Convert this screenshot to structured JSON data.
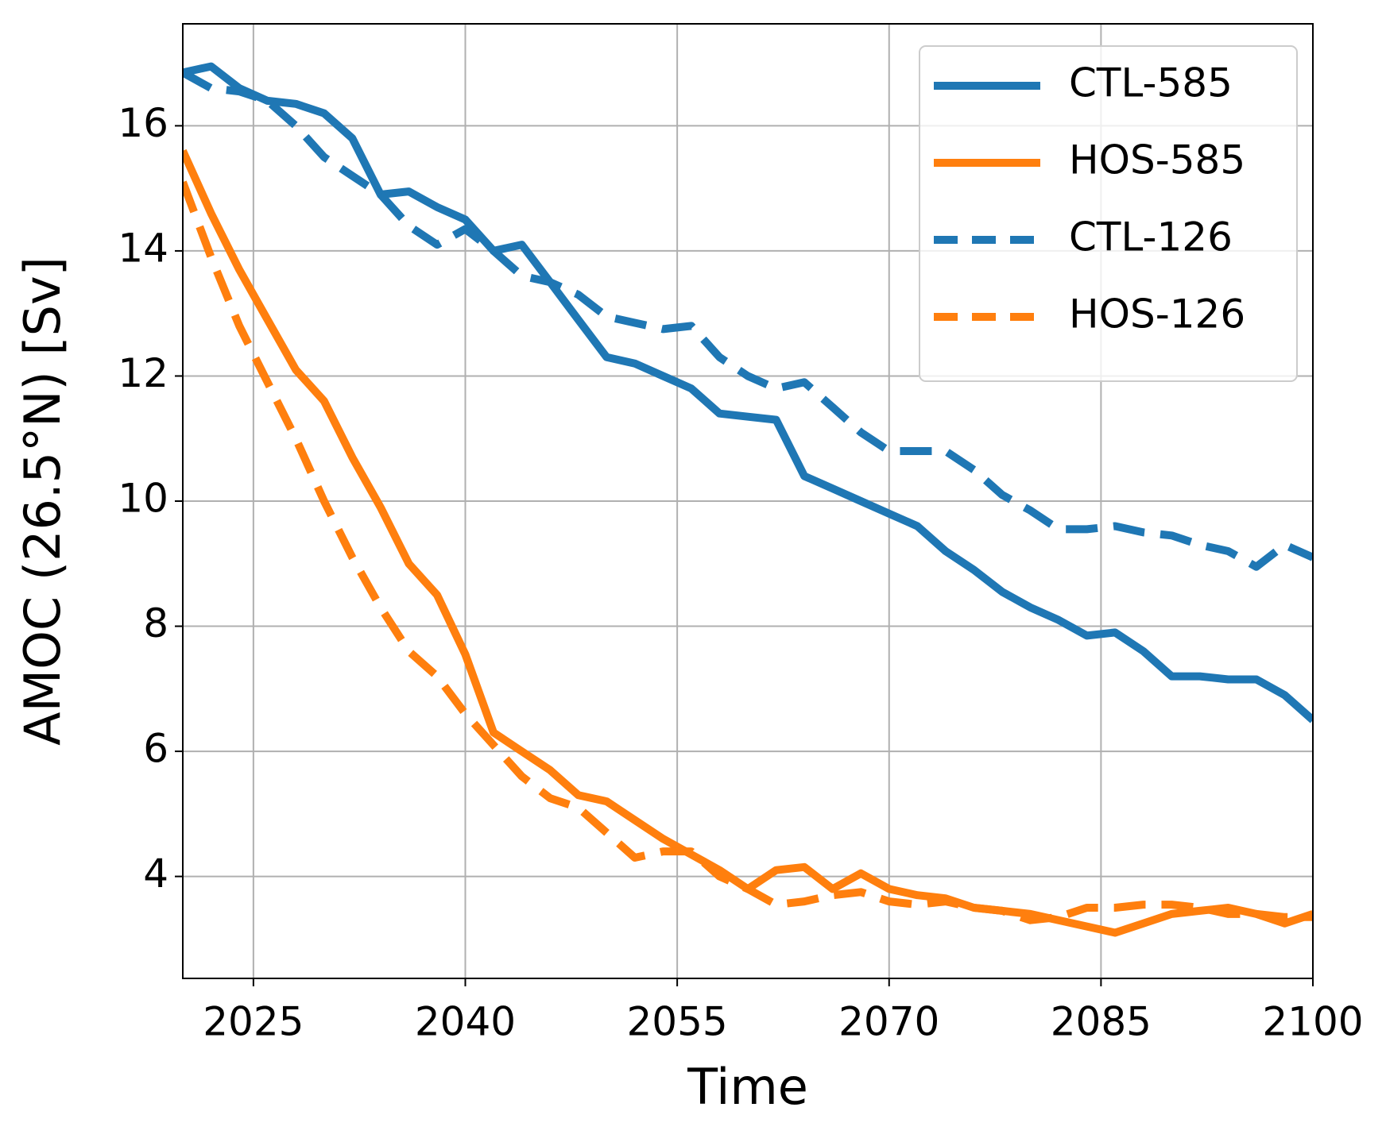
{
  "chart_data": {
    "type": "line",
    "xlabel": "Time",
    "ylabel": "AMOC (26.5°N) [Sv]",
    "x": [
      2020,
      2022,
      2024,
      2026,
      2028,
      2030,
      2032,
      2034,
      2036,
      2038,
      2040,
      2042,
      2044,
      2046,
      2048,
      2050,
      2052,
      2054,
      2056,
      2058,
      2060,
      2062,
      2064,
      2066,
      2068,
      2070,
      2072,
      2074,
      2076,
      2078,
      2080,
      2082,
      2084,
      2086,
      2088,
      2090,
      2092,
      2094,
      2096,
      2098,
      2100
    ],
    "series": [
      {
        "name": "CTL-585",
        "color": "#1f77b4",
        "linestyle": "solid",
        "values": [
          16.85,
          16.95,
          16.6,
          16.4,
          16.35,
          16.2,
          15.8,
          14.9,
          14.95,
          14.7,
          14.5,
          14.0,
          14.1,
          13.5,
          12.9,
          12.3,
          12.2,
          12.0,
          11.8,
          11.4,
          11.35,
          11.3,
          10.4,
          10.2,
          10.0,
          9.8,
          9.6,
          9.2,
          8.9,
          8.55,
          8.3,
          8.1,
          7.85,
          7.9,
          7.6,
          7.2,
          7.2,
          7.15,
          7.15,
          6.9,
          6.5
        ]
      },
      {
        "name": "HOS-585",
        "color": "#ff7f0e",
        "linestyle": "solid",
        "values": [
          15.6,
          14.6,
          13.7,
          12.9,
          12.1,
          11.6,
          10.7,
          9.9,
          9.0,
          8.5,
          7.55,
          6.3,
          6.0,
          5.7,
          5.3,
          5.2,
          4.9,
          4.6,
          4.35,
          4.1,
          3.8,
          4.1,
          4.15,
          3.8,
          4.05,
          3.8,
          3.7,
          3.65,
          3.5,
          3.45,
          3.4,
          3.3,
          3.2,
          3.1,
          3.25,
          3.4,
          3.45,
          3.5,
          3.4,
          3.25,
          3.4
        ]
      },
      {
        "name": "CTL-126",
        "color": "#1f77b4",
        "linestyle": "dashed",
        "values": [
          16.85,
          16.6,
          16.55,
          16.4,
          16.0,
          15.5,
          15.2,
          14.9,
          14.4,
          14.1,
          14.35,
          14.0,
          13.6,
          13.5,
          13.3,
          12.95,
          12.85,
          12.75,
          12.8,
          12.3,
          12.0,
          11.8,
          11.9,
          11.5,
          11.1,
          10.8,
          10.8,
          10.8,
          10.5,
          10.1,
          9.85,
          9.55,
          9.55,
          9.6,
          9.5,
          9.45,
          9.3,
          9.2,
          8.95,
          9.3,
          9.1
        ]
      },
      {
        "name": "HOS-126",
        "color": "#ff7f0e",
        "linestyle": "dashed",
        "values": [
          15.1,
          13.9,
          12.8,
          11.9,
          11.0,
          10.0,
          9.1,
          8.3,
          7.6,
          7.2,
          6.6,
          6.1,
          5.6,
          5.25,
          5.1,
          4.7,
          4.3,
          4.4,
          4.4,
          4.0,
          3.8,
          3.55,
          3.6,
          3.7,
          3.75,
          3.6,
          3.55,
          3.6,
          3.5,
          3.45,
          3.3,
          3.35,
          3.5,
          3.5,
          3.55,
          3.55,
          3.5,
          3.4,
          3.4,
          3.35,
          3.35
        ]
      }
    ],
    "xlim": [
      2020,
      2100
    ],
    "xticks": [
      2025,
      2040,
      2055,
      2070,
      2085,
      2100
    ],
    "ylim": [
      2.37,
      17.63
    ],
    "yticks": [
      4,
      6,
      8,
      10,
      12,
      14,
      16
    ],
    "grid": true,
    "legend": "upper right"
  }
}
